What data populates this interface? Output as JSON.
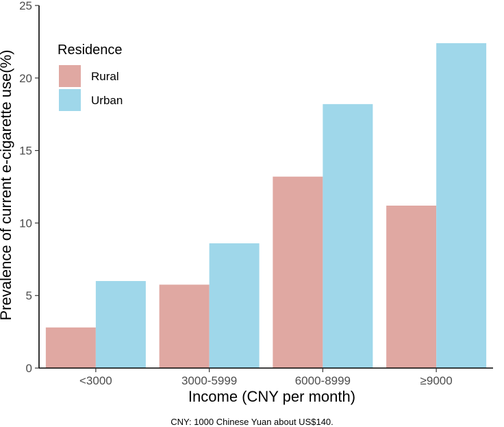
{
  "chart_data": {
    "type": "bar",
    "title": "",
    "xlabel": "Income (CNY per month)",
    "ylabel": "Prevalence of current e-cigarette use(%)",
    "categories": [
      "<3000",
      "3000-5999",
      "6000-8999",
      "≥9000"
    ],
    "series": [
      {
        "name": "Rural",
        "color": "#e0a8a2",
        "values": [
          2.8,
          5.75,
          13.2,
          11.2
        ]
      },
      {
        "name": "Urban",
        "color": "#9fd7ea",
        "values": [
          6.0,
          8.6,
          18.2,
          22.4
        ]
      }
    ],
    "ylim": [
      0,
      25
    ],
    "yticks": [
      0,
      5,
      10,
      15,
      20,
      25
    ],
    "grid": false,
    "legend": {
      "title": "Residence",
      "position": "top-left"
    }
  },
  "caption": "CNY: 1000 Chinese Yuan about US$140."
}
